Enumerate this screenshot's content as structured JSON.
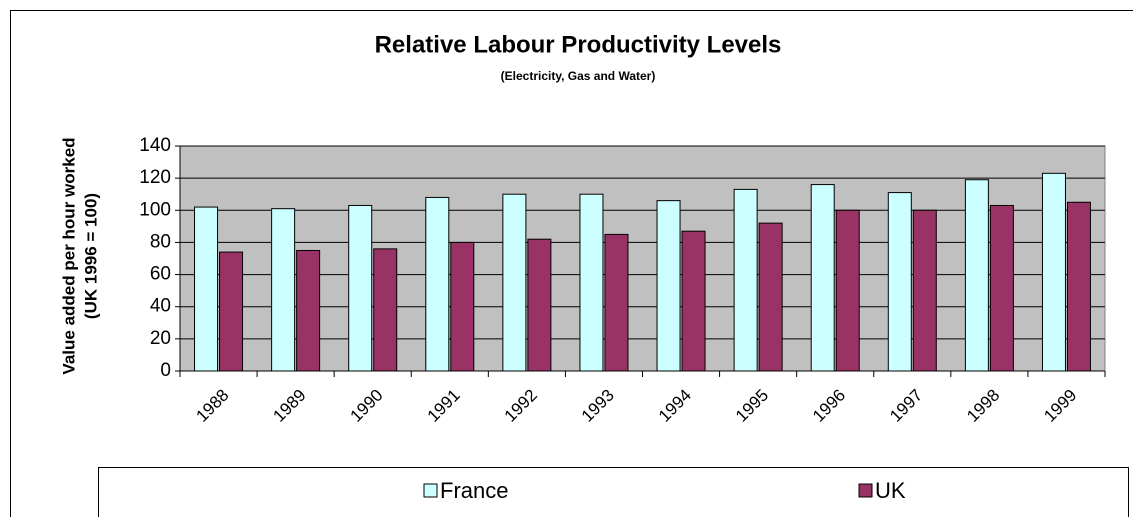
{
  "chart_data": {
    "type": "bar",
    "title": "Relative Labour Productivity Levels",
    "subtitle": "(Electricity, Gas and Water)",
    "y_label": [
      "Value added per hour worked",
      "(UK 1996 = 100)"
    ],
    "categories": [
      "1988",
      "1989",
      "1990",
      "1991",
      "1992",
      "1993",
      "1994",
      "1995",
      "1996",
      "1997",
      "1998",
      "1999"
    ],
    "series": [
      {
        "name": "France",
        "color": "#ccffff",
        "values": [
          102,
          101,
          103,
          108,
          110,
          110,
          106,
          113,
          116,
          111,
          119,
          123
        ]
      },
      {
        "name": "UK",
        "color": "#993366",
        "values": [
          74,
          75,
          76,
          80,
          82,
          85,
          87,
          92,
          100,
          100,
          103,
          105
        ]
      }
    ],
    "ylim": [
      0,
      140
    ],
    "yticks": [
      0,
      20,
      40,
      60,
      80,
      100,
      120,
      140
    ],
    "grid": true,
    "legend": "bottom"
  }
}
